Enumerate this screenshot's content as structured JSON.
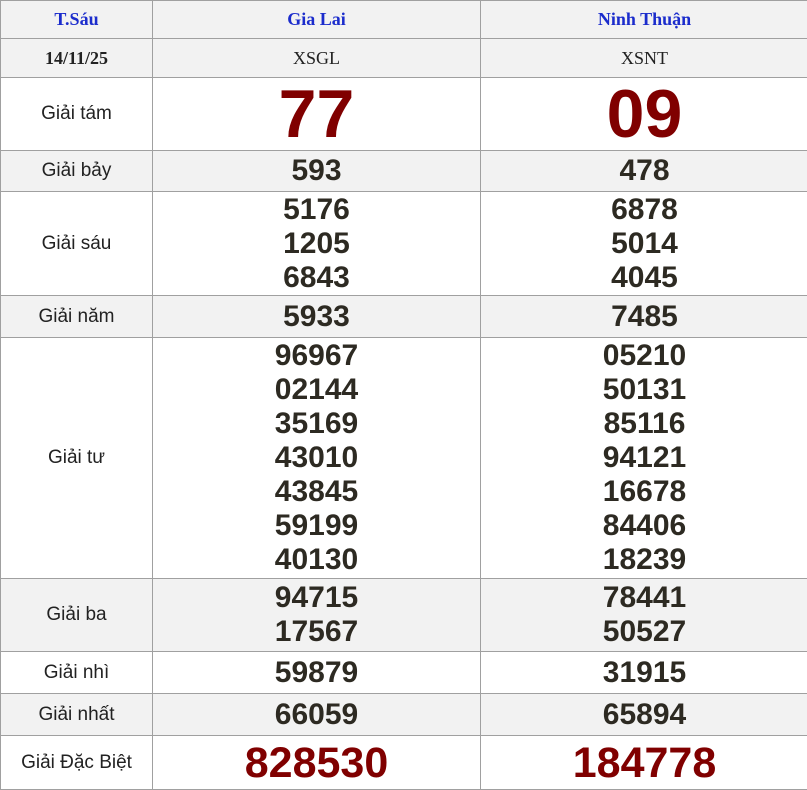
{
  "header": {
    "day": "T.Sáu",
    "provinces": [
      "Gia Lai",
      "Ninh Thuận"
    ]
  },
  "subheader": {
    "date": "14/11/25",
    "codes": [
      "XSGL",
      "XSNT"
    ]
  },
  "prizes": [
    {
      "label": "Giải tám",
      "style": "big",
      "values": [
        [
          "77"
        ],
        [
          "09"
        ]
      ]
    },
    {
      "label": "Giải bảy",
      "style": "num",
      "values": [
        [
          "593"
        ],
        [
          "478"
        ]
      ]
    },
    {
      "label": "Giải sáu",
      "style": "num",
      "values": [
        [
          "5176",
          "1205",
          "6843"
        ],
        [
          "6878",
          "5014",
          "4045"
        ]
      ]
    },
    {
      "label": "Giải năm",
      "style": "num",
      "values": [
        [
          "5933"
        ],
        [
          "7485"
        ]
      ]
    },
    {
      "label": "Giải tư",
      "style": "num",
      "values": [
        [
          "96967",
          "02144",
          "35169",
          "43010",
          "43845",
          "59199",
          "40130"
        ],
        [
          "05210",
          "50131",
          "85116",
          "94121",
          "16678",
          "84406",
          "18239"
        ]
      ]
    },
    {
      "label": "Giải ba",
      "style": "num",
      "values": [
        [
          "94715",
          "17567"
        ],
        [
          "78441",
          "50527"
        ]
      ]
    },
    {
      "label": "Giải nhì",
      "style": "num",
      "values": [
        [
          "59879"
        ],
        [
          "31915"
        ]
      ]
    },
    {
      "label": "Giải nhất",
      "style": "num",
      "values": [
        [
          "66059"
        ],
        [
          "65894"
        ]
      ]
    },
    {
      "label": "Giải Đặc Biệt",
      "style": "special",
      "values": [
        [
          "828530"
        ],
        [
          "184778"
        ]
      ]
    }
  ],
  "colors": {
    "header_text": "#1b2ccc",
    "highlight": "#800000",
    "number": "#2d2a22",
    "alt_row": "#f2f2f2"
  }
}
